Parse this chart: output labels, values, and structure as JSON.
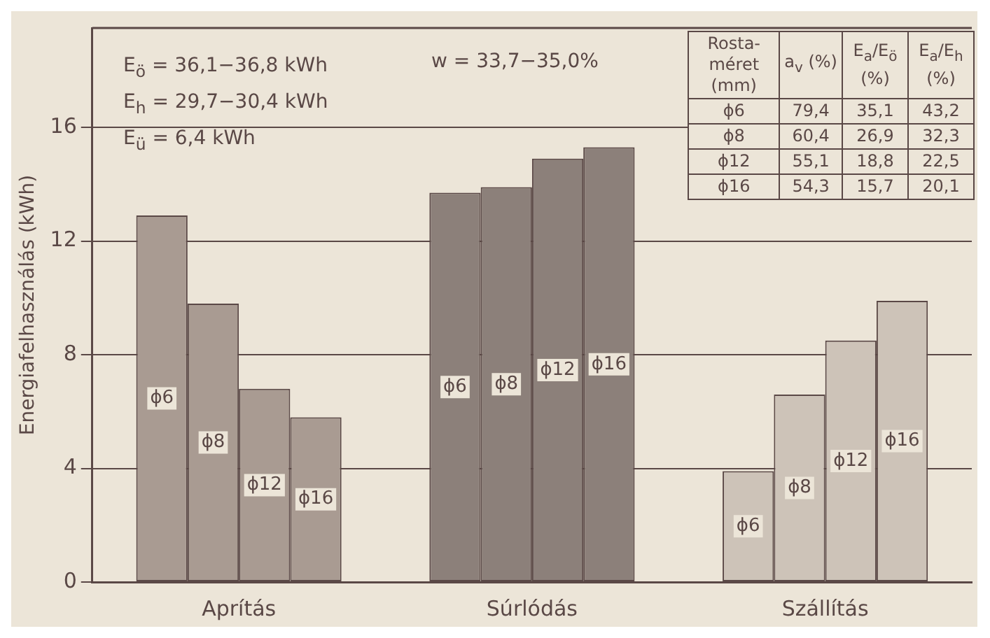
{
  "chart_data": {
    "type": "bar",
    "ylabel": "Energiafelhasználás (kWh)",
    "categories": [
      "Aprítás",
      "Súrlódás",
      "Szállítás"
    ],
    "series": [
      {
        "name": "ϕ6",
        "colors": [
          "#a99b92",
          "#8c807a",
          "#cdc3b8"
        ],
        "values": [
          12.9,
          13.7,
          3.9
        ]
      },
      {
        "name": "ϕ8",
        "colors": [
          "#a99b92",
          "#8c807a",
          "#cdc3b8"
        ],
        "values": [
          9.8,
          13.9,
          6.6
        ]
      },
      {
        "name": "ϕ12",
        "colors": [
          "#a99b92",
          "#8c807a",
          "#cdc3b8"
        ],
        "values": [
          6.8,
          14.9,
          8.5
        ]
      },
      {
        "name": "ϕ16",
        "colors": [
          "#a99b92",
          "#8c807a",
          "#cdc3b8"
        ],
        "values": [
          5.8,
          15.3,
          9.9
        ]
      }
    ],
    "ylim": [
      0,
      19.5
    ],
    "yticks": [
      0,
      4,
      8,
      12,
      16
    ],
    "grid": "y",
    "annotations": [
      "E$_{ö}$ = 36,1−36,8 kWh",
      "E$_{h}$ = 29,7−30,4 kWh",
      "E$_{ü}$ = 6,4 kWh",
      "w = 33,7−35,0%",
      "Rosta-méret (mm)",
      "a$_{v}$ (%)",
      "E$_{a}$/E$_{ö}$ (%)",
      "E$_{a}$/E$_{h}$ (%)",
      "ϕ6",
      "79,4",
      "35,1",
      "43,2",
      "ϕ8",
      "60,4",
      "26,9",
      "32,3",
      "ϕ12",
      "55,1",
      "18,8",
      "22,5",
      "ϕ16",
      "54,3",
      "15,7",
      "20,1"
    ]
  }
}
